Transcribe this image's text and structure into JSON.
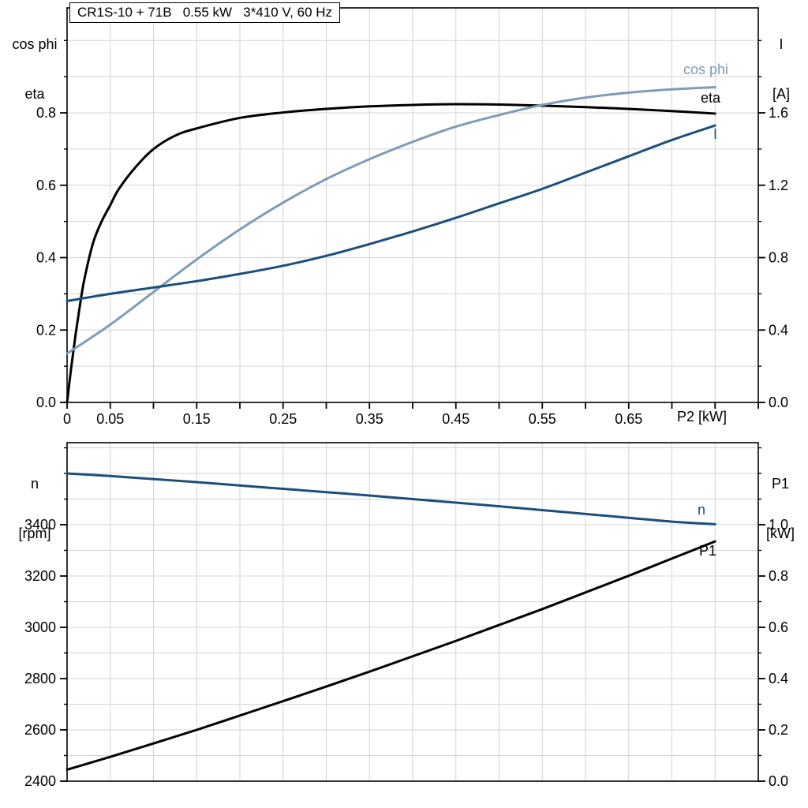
{
  "title": "CR1S-10 + 71B   0.55 kW   3*410 V, 60 Hz",
  "colors": {
    "eta": "#000000",
    "cos_phi": "#7d9bbb",
    "current": "#1b4e7e",
    "speed": "#1b4e7e",
    "p1": "#000000",
    "grid": "#d3d3d3",
    "axis": "#000000"
  },
  "chart_data": [
    {
      "type": "line",
      "panel": "top",
      "title": "CR1S-10 + 71B   0.55 kW   3*410 V, 60 Hz",
      "xlabel": "P2 [kW]",
      "ylabel_left": [
        "cos phi",
        "eta"
      ],
      "ylabel_right": [
        "I",
        "[A]"
      ],
      "grid": true,
      "xlim": [
        0,
        0.8
      ],
      "x_minor_step": 0.05,
      "x_tick_label_values": [
        0,
        0.05,
        0.15,
        0.25,
        0.35,
        0.45,
        0.55,
        0.65
      ],
      "x_tick_labels": [
        "0",
        "0.05",
        "0.15",
        "0.25",
        "0.35",
        "0.45",
        "0.55",
        "0.65"
      ],
      "ylim_left": [
        0,
        1.09
      ],
      "left_major_ticks": [
        0.0,
        0.2,
        0.4,
        0.6,
        0.8
      ],
      "left_tick_labels": [
        "0.0",
        "0.2",
        "0.4",
        "0.6",
        "0.8"
      ],
      "left_minor_step": 0.1,
      "ylim_right": [
        0,
        2.18
      ],
      "right_major_ticks": [
        0.0,
        0.4,
        0.8,
        1.2,
        1.6
      ],
      "right_tick_labels": [
        "0.0",
        "0.4",
        "0.8",
        "1.2",
        "1.6"
      ],
      "right_minor_step": 0.2,
      "series": [
        {
          "name": "eta",
          "axis": "left",
          "color": "#000000",
          "x": [
            0,
            0.005,
            0.01,
            0.015,
            0.02,
            0.03,
            0.04,
            0.05,
            0.06,
            0.08,
            0.1,
            0.125,
            0.15,
            0.2,
            0.25,
            0.3,
            0.35,
            0.4,
            0.45,
            0.5,
            0.55,
            0.6,
            0.65,
            0.7,
            0.75
          ],
          "values": [
            0,
            0.1,
            0.19,
            0.27,
            0.34,
            0.44,
            0.5,
            0.545,
            0.59,
            0.652,
            0.7,
            0.737,
            0.757,
            0.786,
            0.801,
            0.811,
            0.818,
            0.822,
            0.824,
            0.823,
            0.82,
            0.816,
            0.811,
            0.805,
            0.798
          ]
        },
        {
          "name": "cos phi",
          "axis": "left",
          "color": "#7d9bbb",
          "x": [
            0,
            0.05,
            0.1,
            0.15,
            0.2,
            0.25,
            0.3,
            0.35,
            0.4,
            0.45,
            0.5,
            0.55,
            0.6,
            0.65,
            0.7,
            0.75
          ],
          "values": [
            0.135,
            0.215,
            0.305,
            0.395,
            0.478,
            0.552,
            0.617,
            0.672,
            0.72,
            0.762,
            0.794,
            0.822,
            0.842,
            0.856,
            0.865,
            0.871
          ]
        },
        {
          "name": "I",
          "axis": "right",
          "color": "#1b4e7e",
          "x": [
            0,
            0.05,
            0.1,
            0.15,
            0.2,
            0.25,
            0.3,
            0.35,
            0.4,
            0.45,
            0.5,
            0.55,
            0.6,
            0.65,
            0.7,
            0.75
          ],
          "values": [
            0.56,
            0.6,
            0.635,
            0.67,
            0.71,
            0.755,
            0.81,
            0.875,
            0.945,
            1.02,
            1.1,
            1.18,
            1.27,
            1.36,
            1.45,
            1.53
          ]
        }
      ]
    },
    {
      "type": "line",
      "panel": "bottom",
      "xlabel": "",
      "ylabel_left": [
        "n",
        "[rpm]"
      ],
      "ylabel_right": [
        "P1",
        "[kW]"
      ],
      "grid": true,
      "xlim": [
        0,
        0.8
      ],
      "x_minor_step": 0.05,
      "x_tick_label_values": [],
      "x_tick_labels": [],
      "ylim_left": [
        2400,
        3720
      ],
      "left_major_ticks": [
        2400,
        2600,
        2800,
        3000,
        3200,
        3400
      ],
      "left_tick_labels": [
        "2400",
        "2600",
        "2800",
        "3000",
        "3200",
        "3400"
      ],
      "left_minor_step": 100,
      "ylim_right": [
        0,
        1.32
      ],
      "right_major_ticks": [
        0.0,
        0.2,
        0.4,
        0.6,
        0.8,
        1.0
      ],
      "right_tick_labels": [
        "0.0",
        "0.2",
        "0.4",
        "0.6",
        "0.8",
        "1.0"
      ],
      "right_minor_step": 0.1,
      "series": [
        {
          "name": "n",
          "axis": "left",
          "color": "#1b4e7e",
          "x": [
            0,
            0.05,
            0.1,
            0.15,
            0.2,
            0.25,
            0.3,
            0.35,
            0.4,
            0.45,
            0.5,
            0.55,
            0.6,
            0.65,
            0.7,
            0.75
          ],
          "values": [
            3600,
            3590,
            3578,
            3566,
            3553,
            3540,
            3527,
            3514,
            3500,
            3486,
            3472,
            3457,
            3442,
            3427,
            3412,
            3402
          ]
        },
        {
          "name": "P1",
          "axis": "right",
          "color": "#000000",
          "x": [
            0,
            0.05,
            0.1,
            0.15,
            0.2,
            0.25,
            0.3,
            0.35,
            0.4,
            0.45,
            0.5,
            0.55,
            0.6,
            0.65,
            0.7,
            0.75
          ],
          "values": [
            0.045,
            0.095,
            0.147,
            0.2,
            0.256,
            0.312,
            0.369,
            0.427,
            0.487,
            0.547,
            0.609,
            0.671,
            0.736,
            0.801,
            0.868,
            0.935
          ]
        }
      ]
    }
  ]
}
